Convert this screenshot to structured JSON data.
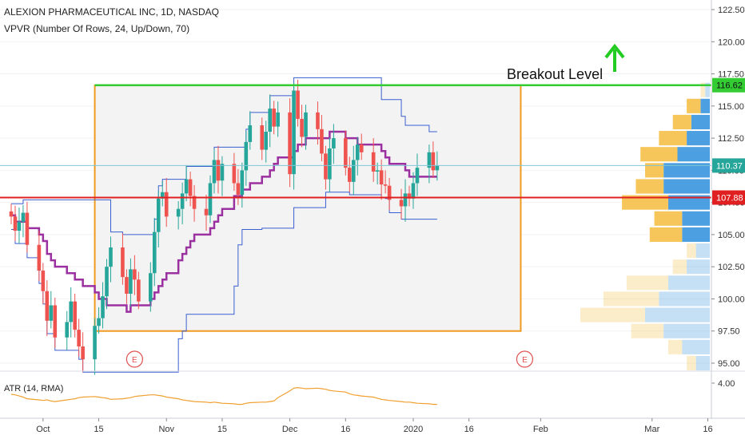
{
  "header": {
    "symbol_line": "ALEXION PHARMACEUTICAL INC, 1D, NASDAQ",
    "indicator_line": "VPVR (Number Of Rows, 24, Up/Down, 70)",
    "atr_label": "ATR (14, RMA)"
  },
  "annotations": {
    "breakout_label": "Breakout Level",
    "earnings_marker": "E"
  },
  "colors": {
    "bull": "#26a69a",
    "bear": "#ef5350",
    "breakout_line": "#33cc33",
    "support_line": "#e02020",
    "range_box": "#f09a20",
    "vol_up": "#4c9fe0",
    "vol_down": "#f7c65a",
    "atr_line": "#f0a030",
    "poc_line": "#9b30a0",
    "channel_line": "#3a5fd0",
    "arrow": "#22cc22"
  },
  "chart_data": [
    {
      "type": "candlestick",
      "title": "ALEXION PHARMACEUTICAL INC, 1D, NASDAQ",
      "x_tick_labels": [
        "Oct",
        "15",
        "Nov",
        "15",
        "Dec",
        "16",
        "2020",
        "16",
        "Feb",
        "Mar",
        "16"
      ],
      "y_tick_labels": [
        "122.50",
        "120.00",
        "117.50",
        "115.00",
        "112.50",
        "110.00",
        "107.50",
        "105.00",
        "102.50",
        "100.00",
        "97.50",
        "95.00"
      ],
      "ylim": [
        94.5,
        123.5
      ],
      "price_labels": {
        "breakout": "116.62",
        "last": "110.37",
        "support": "107.88"
      },
      "breakout_level": 116.62,
      "last_price": 110.37,
      "support_level": 107.88,
      "range_box": {
        "date_start": "2019-10-14",
        "date_end": "2020-01-29",
        "low": 97.5,
        "high": 116.6
      },
      "earnings_dates": [
        "2019-10-24",
        "2020-01-30"
      ],
      "close": [
        106.4,
        105.3,
        106.0,
        106.7,
        104.2,
        102.2,
        100.6,
        98.3,
        99.5,
        97.0,
        98.2,
        99.8,
        97.6,
        96.3,
        95.3,
        97.9,
        98.5,
        100.2,
        102.5,
        104.0,
        101.7,
        100.4,
        102.3,
        101.5,
        99.8,
        102.0,
        105.2,
        107.8,
        108.3,
        106.4,
        107.0,
        108.2,
        109.3,
        108.0,
        107.0,
        106.5,
        109.0,
        110.8,
        109.2,
        110.5,
        109.0,
        108.1,
        110.0,
        112.2,
        113.5,
        111.6,
        113.0,
        114.8,
        113.4,
        114.5,
        109.7,
        116.2,
        114.0,
        112.6,
        114.5,
        113.2,
        111.3,
        109.3,
        111.7,
        112.5,
        110.2,
        109.1,
        110.8,
        112.0,
        111.4,
        109.9,
        110.0,
        108.9,
        108.8,
        107.7,
        107.2,
        108.2,
        107.8,
        109.0,
        110.2,
        111.4,
        110.0,
        110.37
      ],
      "volume_profile": {
        "price_bins": [
          95.0,
          96.25,
          97.5,
          98.75,
          100.0,
          101.25,
          102.5,
          103.75,
          105.0,
          106.25,
          107.5,
          108.75,
          110.0,
          111.25,
          112.5,
          113.75,
          115.0,
          116.25
        ],
        "up_volume": [
          3,
          6,
          10,
          14,
          11,
          9,
          5,
          3,
          6,
          6,
          9,
          10,
          10,
          7,
          5,
          4,
          2,
          1
        ],
        "down_volume": [
          2,
          3,
          7,
          14,
          12,
          9,
          3,
          2,
          7,
          6,
          10,
          6,
          4,
          8,
          6,
          4,
          3,
          1
        ],
        "highlighted_range": [
          104.4,
          116.0
        ]
      },
      "atr": {
        "label": "ATR (14, RMA)",
        "tick_labels": [
          "4.00"
        ],
        "ylim": [
          1.5,
          4.5
        ],
        "values": [
          3.0,
          2.95,
          2.85,
          2.75,
          2.6,
          2.5,
          2.45,
          2.5,
          2.4,
          2.35,
          2.5,
          2.55,
          2.6,
          2.7,
          2.75,
          2.8,
          2.75,
          2.7,
          2.65,
          2.55,
          2.6,
          2.65,
          2.7,
          2.8,
          2.85,
          2.95,
          2.95,
          2.9,
          2.85,
          2.75,
          2.6,
          2.5,
          2.45,
          2.4,
          2.35,
          2.3,
          2.25,
          2.3,
          2.25,
          2.2,
          2.15,
          2.1,
          2.1,
          2.2,
          2.25,
          2.3,
          2.3,
          2.35,
          2.4,
          2.7,
          3.3,
          3.55,
          3.6,
          3.55,
          3.5,
          3.55,
          3.5,
          3.45,
          3.35,
          3.3,
          3.2,
          3.05,
          2.95,
          2.9,
          2.85,
          2.75,
          2.65,
          2.55,
          2.5,
          2.45,
          2.35,
          2.3,
          2.3,
          2.25,
          2.2,
          2.15,
          2.1,
          2.1
        ]
      }
    }
  ]
}
